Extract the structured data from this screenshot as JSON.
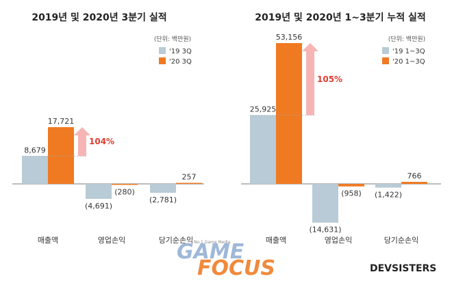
{
  "chart_data": [
    {
      "type": "bar",
      "title": "2019년 및 2020년 3분기 실적",
      "unit_label": "(단위: 백만원)",
      "categories": [
        "매출액",
        "영업손익",
        "당기순손익"
      ],
      "series": [
        {
          "name": "'19 3Q",
          "values": [
            8679,
            -4691,
            -2781
          ],
          "labels": [
            "8,679",
            "(4,691)",
            "(2,781)"
          ],
          "color": "#b8cbd6"
        },
        {
          "name": "'20 3Q",
          "values": [
            17721,
            -280,
            257
          ],
          "labels": [
            "17,721",
            "(280)",
            "257"
          ],
          "color": "#f07a22"
        }
      ],
      "growth_label": "104%"
    },
    {
      "type": "bar",
      "title": "2019년 및 2020년 1~3분기 누적 실적",
      "unit_label": "(단위: 백만원)",
      "categories": [
        "매출액",
        "영업손익",
        "당기순손익"
      ],
      "series": [
        {
          "name": "'19 1~3Q",
          "values": [
            25925,
            -14631,
            -1422
          ],
          "labels": [
            "25,925",
            "(14,631)",
            "(1,422)"
          ],
          "color": "#b8cbd6"
        },
        {
          "name": "'20 1~3Q",
          "values": [
            53156,
            -958,
            766
          ],
          "labels": [
            "53,156",
            "(958)",
            "766"
          ],
          "color": "#f07a22"
        }
      ],
      "growth_label": "105%"
    }
  ],
  "watermark": {
    "tagline": "No.1 Game Media",
    "game": "GAME",
    "focus": "FOCUS"
  },
  "brand": "DEVSISTERS"
}
